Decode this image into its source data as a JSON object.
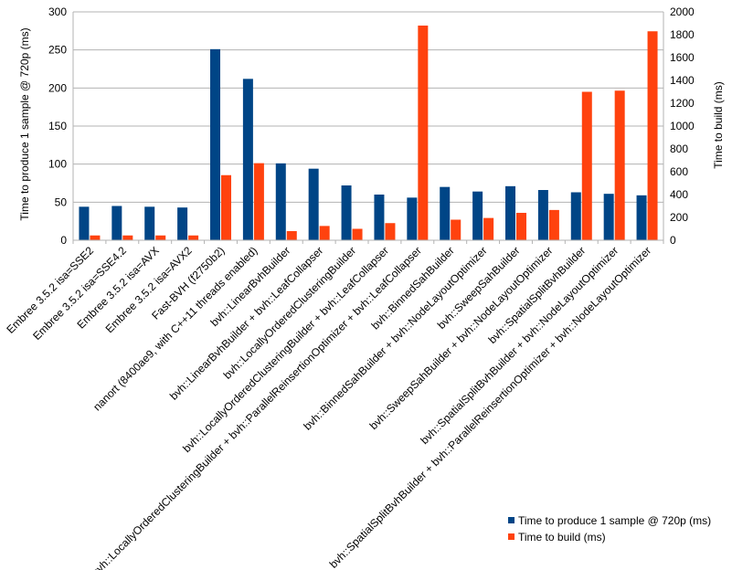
{
  "chart_data": {
    "type": "bar",
    "title": "",
    "ylabel_left": "Time to produce 1 sample @ 720p (ms)",
    "ylabel_right": "Time to build (ms)",
    "ylim_left": [
      0,
      300
    ],
    "ylim_right": [
      0,
      2000
    ],
    "yticks_left": [
      0,
      50,
      100,
      150,
      200,
      250,
      300
    ],
    "yticks_right": [
      0,
      200,
      400,
      600,
      800,
      1000,
      1200,
      1400,
      1600,
      1800,
      2000
    ],
    "grid": true,
    "legend_position": "bottom-right",
    "categories": [
      "Embree 3.5.2 isa=SSE2",
      "Embree 3.5.2 isa=SSE4.2",
      "Embree 3.5.2 isa=AVX",
      "Embree 3.5.2 isa=AVX2",
      "Fast-BVH (f2750b2)",
      "nanort (8400ae9, with C++11 threads enabled)",
      "bvh::LinearBvhBuilder",
      "bvh::LinearBvhBuilder + bvh::LeafCollapser",
      "bvh::LocallyOrderedClusteringBuilder",
      "bvh::LocallyOrderedClusteringBuilder + bvh::LeafCollapser",
      "bvh::LocallyOrderedClusteringBuilder + bvh::ParallelReinsertionOptimizer + bvh::LeafCollapser",
      "bvh::BinnedSahBuilder",
      "bvh::BinnedSahBuilder + bvh::NodeLayoutOptimizer",
      "bvh::SweepSahBuilder",
      "bvh::SweepSahBuilder + bvh::NodeLayoutOptimizer",
      "bvh::SpatialSplitBvhBuilder",
      "bvh::SpatialSplitBvhBuilder + bvh::NodeLayoutOptimizer",
      "bvh::SpatialSplitBvhBuilder + bvh::ParallelReinsertionOptimizer + bvh::NodeLayoutOptimizer"
    ],
    "series": [
      {
        "name": "Time to produce 1 sample @ 720p (ms)",
        "axis": "left",
        "color": "#004586",
        "values": [
          44,
          45,
          44,
          43,
          251,
          212,
          101,
          94,
          72,
          60,
          56,
          70,
          64,
          71,
          66,
          63,
          61,
          59
        ]
      },
      {
        "name": "Time to build (ms)",
        "axis": "right",
        "color": "#ff420e",
        "values": [
          42,
          42,
          42,
          42,
          570,
          675,
          80,
          125,
          100,
          150,
          1880,
          180,
          195,
          240,
          265,
          1300,
          1310,
          1830
        ]
      }
    ]
  }
}
